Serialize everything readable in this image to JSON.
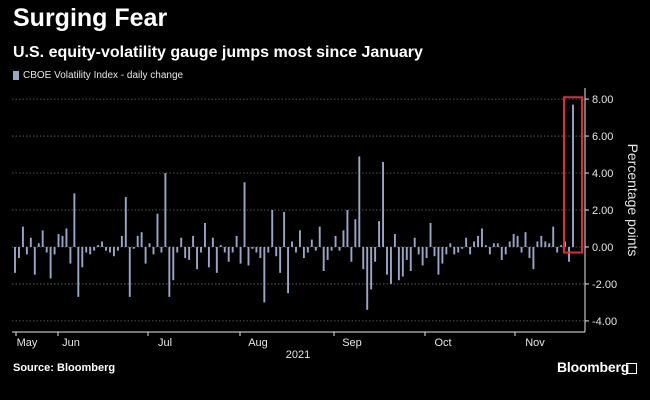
{
  "title": "Surging Fear",
  "subtitle": "U.S. equity-volatility gauge jumps most since January",
  "source": "Source: Bloomberg",
  "brand": "Bloomberg",
  "colors": {
    "bar": "#9aa6c8",
    "highlight": "#e02b34",
    "grid": "#6a6a6a",
    "text": "#e6e6e6"
  },
  "chart_data": {
    "type": "bar",
    "xlabel": "2021",
    "ylabel": "Percentage points",
    "ylim": [
      -4.6,
      8.6
    ],
    "yticks": [
      "8.00",
      "6.00",
      "4.00",
      "2.00",
      "0.00",
      "-2.00",
      "-4.00"
    ],
    "ytick_values": [
      8,
      6,
      4,
      2,
      0,
      -2,
      -4
    ],
    "x_tick_labels": [
      "May",
      "Jun",
      "Jul",
      "Aug",
      "Sep",
      "Oct",
      "Nov"
    ],
    "grid": true,
    "legend": "top-left",
    "series": [
      {
        "name": "CBOE Volatility Index - daily change",
        "values": [
          -1.4,
          -0.6,
          1.1,
          -0.4,
          0.5,
          -1.5,
          0.2,
          0.9,
          -0.3,
          -1.7,
          -0.4,
          0.7,
          0.6,
          1.0,
          -0.9,
          2.9,
          -2.7,
          -1.1,
          -0.3,
          -0.4,
          -0.2,
          0.1,
          0.3,
          -0.2,
          -0.3,
          -0.5,
          -0.2,
          0.6,
          2.7,
          -2.7,
          -0.1,
          0.6,
          0.8,
          -0.9,
          0.2,
          -0.4,
          1.8,
          -0.3,
          4.0,
          -2.7,
          -1.8,
          -0.3,
          0.5,
          -0.6,
          -0.7,
          0.6,
          -1.2,
          -0.3,
          1.3,
          -1.1,
          0.5,
          -1.4,
          0.1,
          -0.3,
          -0.8,
          -0.3,
          0.6,
          -0.9,
          3.5,
          -1.0,
          -0.1,
          -0.3,
          -0.6,
          -3.0,
          -0.3,
          2.0,
          -0.5,
          -1.4,
          1.9,
          -2.5,
          0.3,
          -0.3,
          0.9,
          -0.6,
          -0.3,
          0.4,
          -0.2,
          1.1,
          -1.3,
          -0.7,
          -0.2,
          0.6,
          -0.2,
          0.9,
          2.0,
          -0.8,
          1.5,
          4.9,
          -1.2,
          -3.4,
          -2.3,
          -0.8,
          1.4,
          4.6,
          -1.5,
          -2.0,
          0.7,
          -1.8,
          -1.6,
          -0.7,
          -1.3,
          0.5,
          -0.4,
          -1.0,
          -0.6,
          1.3,
          -0.5,
          -1.5,
          -0.9,
          -0.4,
          0.2,
          -0.4,
          -0.3,
          -0.1,
          0.5,
          -0.4,
          0.3,
          0.6,
          1.0,
          0.1,
          -0.4,
          0.2,
          0.2,
          -0.7,
          -0.4,
          0.3,
          0.7,
          0.6,
          -0.3,
          0.8,
          -0.6,
          -1.2,
          0.3,
          0.6,
          0.3,
          0.2,
          1.1,
          -0.3,
          0.1,
          0.3,
          -0.8,
          7.7
        ]
      }
    ]
  }
}
